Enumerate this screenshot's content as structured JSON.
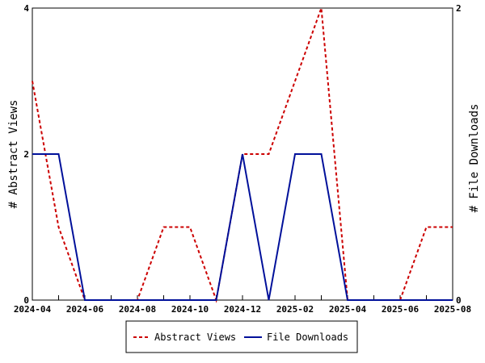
{
  "chart_data": {
    "type": "line",
    "x": [
      "2024-04",
      "2024-05",
      "2024-06",
      "2024-07",
      "2024-08",
      "2024-09",
      "2024-10",
      "2024-11",
      "2024-12",
      "2025-01",
      "2025-02",
      "2025-03",
      "2025-04",
      "2025-05",
      "2025-06",
      "2025-07",
      "2025-08"
    ],
    "x_tick_labels": [
      "2024-04",
      "2024-06",
      "2024-08",
      "2024-10",
      "2024-12",
      "2025-02",
      "2025-04",
      "2025-06",
      "2025-08"
    ],
    "series": [
      {
        "name": "Abstract Views",
        "axis": "left",
        "color": "#cc0000",
        "style": "dashed",
        "values": [
          3,
          1,
          0,
          0,
          0,
          1,
          1,
          0,
          2,
          2,
          3,
          4,
          0,
          0,
          0,
          1,
          1
        ]
      },
      {
        "name": "File Downloads",
        "axis": "right",
        "color": "#00109a",
        "style": "solid",
        "values": [
          1,
          1,
          0,
          0,
          0,
          0,
          0,
          0,
          1,
          0,
          1,
          1,
          0,
          0,
          0,
          0,
          0
        ]
      }
    ],
    "ylabel_left": "# Abstract Views",
    "ylabel_right": "# File Downloads",
    "ylim_left": [
      0,
      4
    ],
    "ylim_right": [
      0,
      2
    ],
    "yticks_left": [
      "0",
      "2",
      "4"
    ],
    "yticks_right": [
      "0",
      "2"
    ],
    "grid": false,
    "legend_placement": "bottom-center"
  }
}
